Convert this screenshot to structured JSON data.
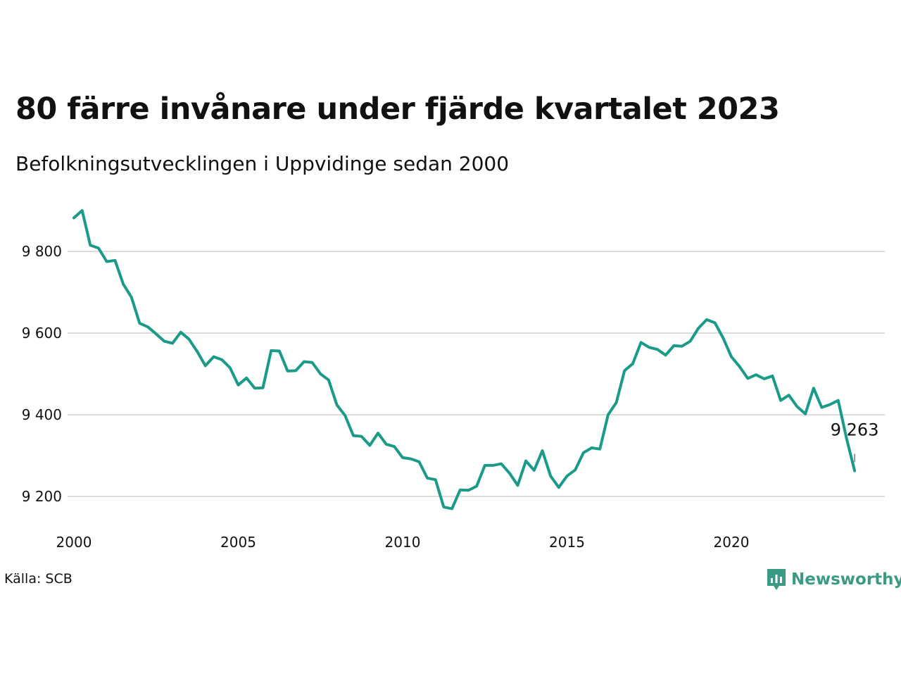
{
  "header": {
    "title": "80 färre invånare under fjärde kvartalet 2023",
    "subtitle": "Befolkningsutvecklingen i Uppvidinge sedan 2000"
  },
  "footer": {
    "source": "Källa: SCB",
    "brand": "Newsworthy",
    "brand_icon": "newsworthy-logo-icon",
    "brand_color": "#3a9a86"
  },
  "chart_data": {
    "type": "line",
    "title": "80 färre invånare under fjärde kvartalet 2023",
    "subtitle": "Befolkningsutvecklingen i Uppvidinge sedan 2000",
    "xlabel": "",
    "ylabel": "",
    "x_ticks": [
      2000,
      2005,
      2010,
      2015,
      2020
    ],
    "x_tick_labels": [
      "2000",
      "2005",
      "2010",
      "2015",
      "2020"
    ],
    "y_ticks": [
      9200,
      9400,
      9600,
      9800
    ],
    "y_tick_labels": [
      "9 200",
      "9 400",
      "9 600",
      "9 800"
    ],
    "xlim": [
      2000,
      2024.5
    ],
    "ylim": [
      9120,
      9950
    ],
    "grid": "horizontal",
    "line_color": "#1a9a88",
    "annotation": {
      "text": "9 263",
      "x": 2023.75,
      "y": 9263
    },
    "series": [
      {
        "x": [
          2000.0,
          2000.25,
          2000.5,
          2000.75,
          2001.0,
          2001.25,
          2001.5,
          2001.75,
          2002.0,
          2002.25,
          2002.5,
          2002.75,
          2003.0,
          2003.25,
          2003.5,
          2003.75,
          2004.0,
          2004.25,
          2004.5,
          2004.75,
          2005.0,
          2005.25,
          2005.5,
          2005.75,
          2006.0,
          2006.25,
          2006.5,
          2006.75,
          2007.0,
          2007.25,
          2007.5,
          2007.75,
          2008.0,
          2008.25,
          2008.5,
          2008.75,
          2009.0,
          2009.25,
          2009.5,
          2009.75,
          2010.0,
          2010.25,
          2010.5,
          2010.75,
          2011.0,
          2011.25,
          2011.5,
          2011.75,
          2012.0,
          2012.25,
          2012.5,
          2012.75,
          2013.0,
          2013.25,
          2013.5,
          2013.75,
          2014.0,
          2014.25,
          2014.5,
          2014.75,
          2015.0,
          2015.25,
          2015.5,
          2015.75,
          2016.0,
          2016.25,
          2016.5,
          2016.75,
          2017.0,
          2017.25,
          2017.5,
          2017.75,
          2018.0,
          2018.25,
          2018.5,
          2018.75,
          2019.0,
          2019.25,
          2019.5,
          2019.75,
          2020.0,
          2020.25,
          2020.5,
          2020.75,
          2021.0,
          2021.25,
          2021.5,
          2021.75,
          2022.0,
          2022.25,
          2022.5,
          2022.75,
          2023.0,
          2023.25,
          2023.5,
          2023.75
        ],
        "values": [
          9882,
          9900,
          9815,
          9808,
          9775,
          9778,
          9720,
          9688,
          9624,
          9615,
          9598,
          9580,
          9575,
          9602,
          9585,
          9555,
          9520,
          9542,
          9535,
          9515,
          9473,
          9490,
          9465,
          9466,
          9557,
          9556,
          9507,
          9508,
          9530,
          9528,
          9500,
          9485,
          9424,
          9398,
          9349,
          9347,
          9325,
          9355,
          9328,
          9322,
          9295,
          9292,
          9285,
          9245,
          9241,
          9174,
          9170,
          9216,
          9215,
          9225,
          9276,
          9276,
          9280,
          9257,
          9227,
          9287,
          9264,
          9312,
          9250,
          9222,
          9250,
          9265,
          9307,
          9319,
          9316,
          9400,
          9430,
          9508,
          9525,
          9577,
          9565,
          9560,
          9546,
          9569,
          9568,
          9580,
          9612,
          9633,
          9625,
          9588,
          9542,
          9518,
          9489,
          9498,
          9488,
          9495,
          9435,
          9448,
          9420,
          9402,
          9465,
          9418,
          9425,
          9435,
          9343,
          9263
        ]
      }
    ]
  }
}
